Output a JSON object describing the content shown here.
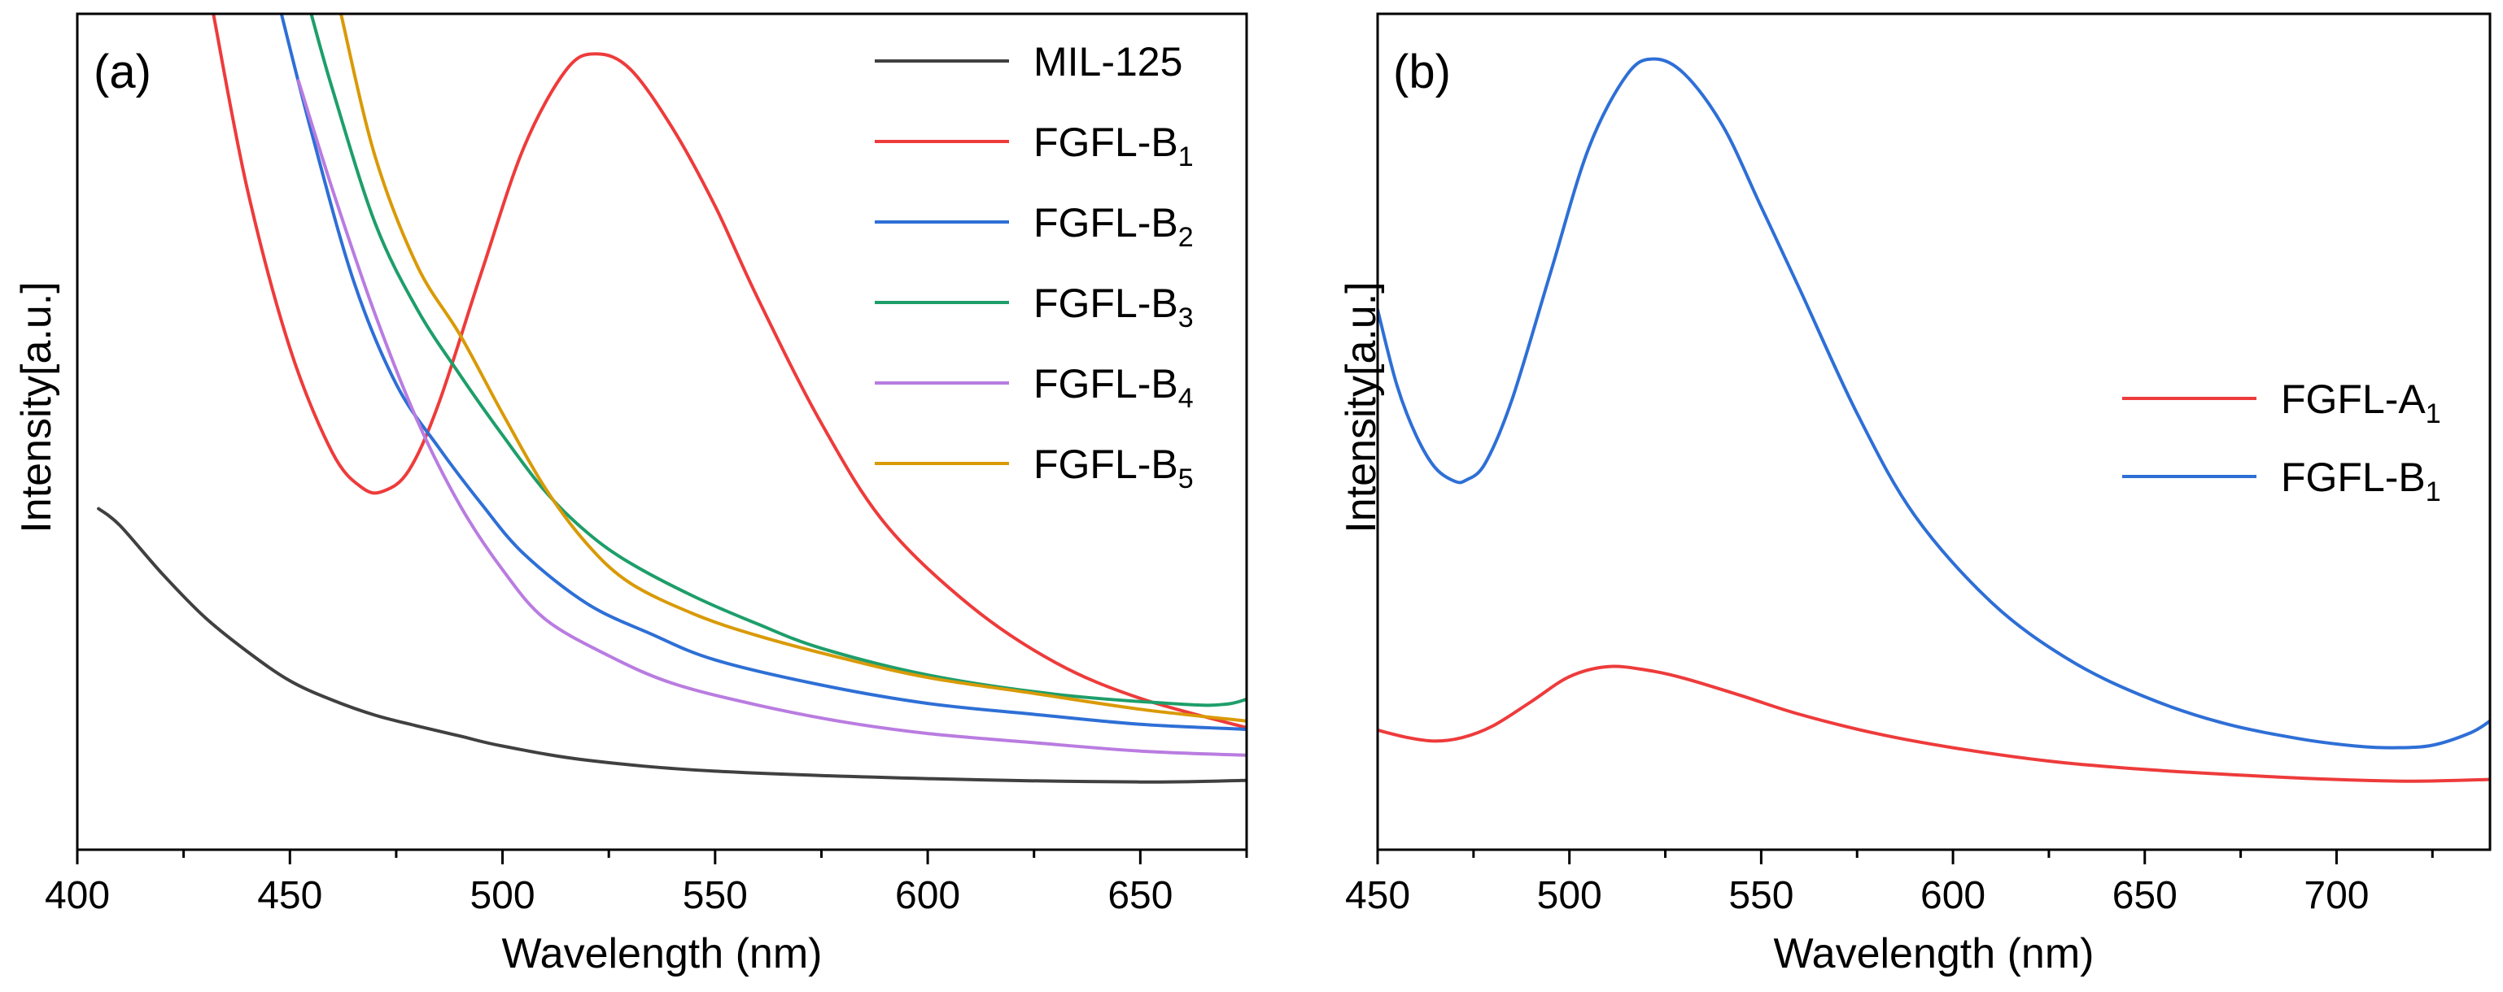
{
  "chart_data": [
    {
      "type": "line",
      "panel_label": "(a)",
      "xlabel": "Wavelength (nm)",
      "ylabel": "Intensity[a.u.]",
      "xlim": [
        400,
        675
      ],
      "ylim": [
        0,
        100
      ],
      "x_ticks": [
        400,
        450,
        500,
        550,
        600,
        650
      ],
      "x_ticks_labels": [
        "400",
        "450",
        "500",
        "550",
        "600",
        "650"
      ],
      "y_ticks_shown": false,
      "legend_position": "top-right",
      "series": [
        {
          "name": "MIL-125",
          "sub": "",
          "color": "#404040",
          "x": [
            405,
            410,
            420,
            430,
            440,
            450,
            460,
            470,
            480,
            490,
            500,
            520,
            550,
            600,
            650,
            675
          ],
          "y": [
            40.8,
            38.8,
            33.0,
            27.8,
            23.7,
            20.2,
            17.9,
            16.1,
            14.8,
            13.6,
            12.4,
            10.7,
            9.4,
            8.5,
            8.1,
            8.3
          ]
        },
        {
          "name": "FGFL-B",
          "sub": "1",
          "color": "#ee3b3b",
          "x": [
            432,
            440,
            450,
            460,
            467,
            472,
            478,
            485,
            495,
            505,
            515,
            522,
            530,
            540,
            550,
            560,
            575,
            590,
            610,
            630,
            650,
            675
          ],
          "y": [
            100,
            79,
            60,
            47.5,
            43.3,
            42.9,
            45.4,
            53.4,
            69,
            84,
            93.3,
            95.2,
            93.4,
            86.3,
            77,
            66,
            51,
            39,
            29.2,
            22.4,
            18.1,
            14.6
          ]
        },
        {
          "name": "FGFL-B",
          "sub": "2",
          "color": "#2e6fd6",
          "x": [
            448,
            455,
            465,
            475,
            485,
            495,
            505,
            520,
            535,
            550,
            575,
            600,
            625,
            650,
            675
          ],
          "y": [
            100,
            86,
            68,
            55.7,
            48.1,
            41.4,
            35.4,
            29.4,
            25.8,
            22.7,
            19.7,
            17.5,
            16.2,
            15.0,
            14.4
          ]
        },
        {
          "name": "FGFL-B",
          "sub": "3",
          "color": "#1e9e6a",
          "x": [
            455,
            460,
            470,
            480,
            490,
            500,
            510,
            520,
            530,
            545,
            560,
            575,
            600,
            630,
            660,
            670,
            675
          ],
          "y": [
            100,
            91,
            75,
            64.6,
            56.8,
            49.6,
            42.9,
            37.9,
            34.3,
            30.3,
            27,
            24.1,
            20.9,
            18.6,
            17.4,
            17.4,
            18.0
          ]
        },
        {
          "name": "FGFL-B",
          "sub": "4",
          "color": "#b97ce0",
          "x": [
            452,
            460,
            470,
            480,
            490,
            500,
            510,
            525,
            540,
            560,
            580,
            600,
            625,
            650,
            675
          ],
          "y": [
            92,
            79,
            64.1,
            51.3,
            41.2,
            33.5,
            27.6,
            23.2,
            19.9,
            17.3,
            15.3,
            13.9,
            12.8,
            11.8,
            11.3
          ]
        },
        {
          "name": "FGFL-B",
          "sub": "5",
          "color": "#d99a07",
          "x": [
            462,
            470,
            480,
            490,
            500,
            510,
            520,
            530,
            545,
            560,
            580,
            600,
            625,
            650,
            675
          ],
          "y": [
            100,
            83,
            69.8,
            61.6,
            52.2,
            43.3,
            36.5,
            31.9,
            28.2,
            25.6,
            22.9,
            20.6,
            18.7,
            16.8,
            15.4
          ]
        }
      ]
    },
    {
      "type": "line",
      "panel_label": "(b)",
      "xlabel": "Wavelength (nm)",
      "ylabel": "Intensity[a.u.]",
      "xlim": [
        450,
        740
      ],
      "ylim": [
        0,
        100
      ],
      "x_ticks": [
        450,
        500,
        550,
        600,
        650,
        700
      ],
      "x_ticks_labels": [
        "450",
        "500",
        "550",
        "600",
        "650",
        "700"
      ],
      "y_ticks_shown": false,
      "legend_position": "center-right",
      "series": [
        {
          "name": "FGFL-A",
          "sub": "1",
          "color": "#ee3b3b",
          "x": [
            450,
            458,
            465,
            472,
            480,
            490,
            500,
            510,
            520,
            530,
            545,
            560,
            580,
            600,
            625,
            650,
            680,
            700,
            720,
            740
          ],
          "y": [
            14.3,
            13.4,
            13.0,
            13.4,
            14.8,
            17.7,
            20.7,
            21.9,
            21.5,
            20.5,
            18.4,
            16.2,
            13.9,
            12.2,
            10.6,
            9.6,
            8.8,
            8.4,
            8.2,
            8.4
          ]
        },
        {
          "name": "FGFL-B",
          "sub": "1",
          "color": "#2e6fd6",
          "x": [
            450,
            455,
            460,
            465,
            470,
            473,
            478,
            485,
            495,
            505,
            515,
            522,
            530,
            540,
            550,
            560,
            575,
            590,
            610,
            630,
            650,
            670,
            690,
            705,
            715,
            725,
            735,
            740
          ],
          "y": [
            64.6,
            55.6,
            49.6,
            45.7,
            44.1,
            44.2,
            46.2,
            53.8,
            68.9,
            83.9,
            92.7,
            94.6,
            92.8,
            86.6,
            76.9,
            67.1,
            52.2,
            40.0,
            29.6,
            22.8,
            18.3,
            15.2,
            13.3,
            12.4,
            12.2,
            12.5,
            14.0,
            15.4
          ]
        }
      ]
    }
  ]
}
